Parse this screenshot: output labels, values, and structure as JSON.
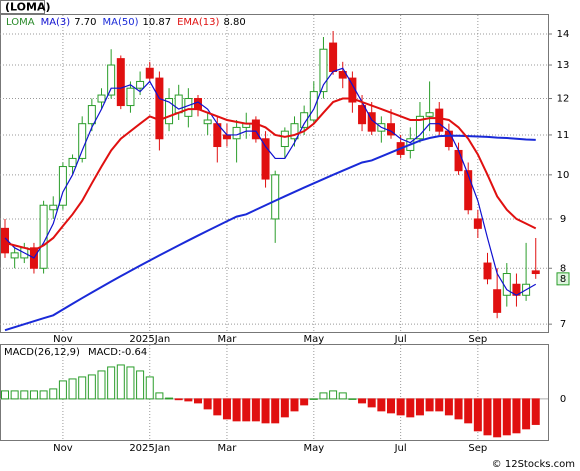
{
  "chart_data": {
    "type": "candlestick",
    "title": "(LOMA)",
    "legend_ticker": "LOMA",
    "categories": [
      null,
      null,
      null,
      null,
      null,
      null,
      "Nov",
      null,
      null,
      null,
      null,
      null,
      null,
      null,
      null,
      "2025Jan",
      null,
      null,
      null,
      null,
      null,
      null,
      null,
      "Mar",
      null,
      null,
      null,
      null,
      null,
      null,
      null,
      null,
      "May",
      null,
      null,
      null,
      null,
      null,
      null,
      null,
      null,
      "Jul",
      null,
      null,
      null,
      null,
      null,
      null,
      null,
      "Sep",
      null,
      null,
      null,
      null,
      null,
      null
    ],
    "open": [
      8.8,
      8.2,
      8.2,
      8.4,
      8.0,
      9.2,
      9.3,
      10.2,
      10.4,
      11.3,
      11.9,
      12.1,
      13.2,
      11.8,
      12.3,
      12.9,
      12.6,
      11.3,
      11.6,
      11.5,
      12.0,
      11.3,
      11.3,
      11.0,
      10.9,
      11.2,
      11.4,
      10.9,
      9.0,
      10.7,
      10.9,
      11.2,
      11.4,
      12.2,
      13.7,
      12.8,
      12.6,
      11.8,
      11.6,
      11.1,
      11.3,
      10.8,
      10.6,
      10.9,
      11.5,
      11.7,
      11.1,
      10.6,
      10.1,
      9.0,
      8.1,
      7.6,
      7.5,
      7.7,
      7.5,
      7.95
    ],
    "high": [
      9.0,
      8.4,
      8.5,
      8.5,
      9.4,
      9.5,
      10.3,
      10.5,
      11.5,
      12.0,
      12.3,
      13.5,
      13.3,
      12.5,
      12.8,
      13.1,
      12.8,
      12.3,
      12.4,
      12.3,
      12.1,
      11.6,
      11.5,
      11.3,
      11.4,
      11.6,
      11.5,
      11.1,
      10.1,
      11.2,
      11.5,
      11.8,
      12.5,
      13.9,
      14.1,
      13.1,
      12.8,
      12.1,
      11.9,
      11.5,
      11.7,
      11.0,
      11.2,
      11.9,
      12.5,
      11.9,
      11.3,
      10.8,
      10.3,
      9.2,
      8.3,
      8.0,
      8.1,
      7.9,
      8.5,
      8.6
    ],
    "low": [
      8.2,
      8.0,
      8.1,
      7.9,
      7.9,
      9.0,
      9.2,
      10.0,
      10.3,
      11.1,
      11.7,
      12.0,
      11.7,
      11.6,
      12.1,
      12.5,
      10.6,
      11.1,
      11.4,
      11.2,
      11.5,
      11.0,
      10.3,
      10.7,
      10.3,
      10.9,
      10.8,
      9.7,
      8.5,
      10.4,
      10.7,
      11.0,
      11.3,
      12.0,
      12.7,
      12.3,
      11.6,
      11.1,
      11.0,
      10.8,
      10.9,
      10.4,
      10.4,
      10.8,
      11.1,
      11.0,
      10.6,
      10.0,
      9.1,
      8.6,
      7.7,
      7.1,
      7.3,
      7.3,
      7.4,
      7.8
    ],
    "close": [
      8.3,
      8.3,
      8.4,
      8.0,
      9.3,
      9.3,
      10.2,
      10.4,
      11.3,
      11.8,
      12.1,
      13.0,
      11.8,
      12.3,
      12.5,
      12.6,
      10.9,
      12.0,
      12.1,
      12.0,
      11.7,
      11.4,
      10.7,
      10.9,
      11.2,
      11.3,
      10.9,
      9.9,
      10.0,
      11.1,
      11.3,
      11.6,
      12.2,
      13.5,
      12.8,
      12.6,
      11.9,
      11.3,
      11.1,
      11.3,
      11.0,
      10.5,
      10.9,
      11.5,
      11.6,
      11.1,
      10.7,
      10.1,
      9.2,
      8.8,
      7.8,
      7.2,
      7.9,
      7.5,
      7.7,
      7.9
    ],
    "up_color": "#2a9d2a",
    "down_color": "#e01010",
    "series": [
      {
        "name": "MA(3)",
        "value_label": "7.70",
        "color": "#1010d0",
        "values": [
          8.6,
          8.4,
          8.3,
          8.2,
          8.5,
          8.9,
          9.6,
          10.0,
          10.6,
          11.2,
          11.7,
          12.3,
          12.3,
          12.4,
          12.2,
          12.5,
          12.0,
          11.9,
          11.7,
          11.8,
          11.9,
          11.7,
          11.3,
          11.0,
          11.0,
          11.1,
          11.1,
          10.7,
          10.4,
          10.4,
          10.8,
          11.3,
          11.7,
          12.4,
          12.8,
          12.9,
          12.4,
          11.9,
          11.4,
          11.2,
          11.1,
          10.9,
          10.8,
          11.0,
          11.3,
          11.3,
          11.1,
          10.6,
          10.0,
          9.4,
          8.6,
          7.9,
          7.6,
          7.5,
          7.6,
          7.7
        ]
      },
      {
        "name": "MA(50)",
        "value_label": "10.87",
        "color": "#1a2ad8",
        "values": [
          6.9,
          6.95,
          7.0,
          7.05,
          7.1,
          7.15,
          7.25,
          7.35,
          7.45,
          7.55,
          7.65,
          7.75,
          7.85,
          7.95,
          8.05,
          8.15,
          8.25,
          8.35,
          8.45,
          8.55,
          8.65,
          8.75,
          8.85,
          8.95,
          9.05,
          9.1,
          9.2,
          9.3,
          9.4,
          9.5,
          9.6,
          9.7,
          9.8,
          9.9,
          10.0,
          10.1,
          10.2,
          10.3,
          10.35,
          10.45,
          10.55,
          10.65,
          10.75,
          10.85,
          10.92,
          10.97,
          10.98,
          10.98,
          10.97,
          10.96,
          10.95,
          10.93,
          10.92,
          10.9,
          10.88,
          10.87
        ]
      },
      {
        "name": "EMA(13)",
        "value_label": "8.80",
        "color": "#e01010",
        "values": [
          8.5,
          8.45,
          8.4,
          8.35,
          8.45,
          8.6,
          8.85,
          9.1,
          9.4,
          9.8,
          10.2,
          10.6,
          10.9,
          11.1,
          11.3,
          11.5,
          11.4,
          11.5,
          11.6,
          11.7,
          11.7,
          11.6,
          11.5,
          11.4,
          11.35,
          11.3,
          11.3,
          11.2,
          11.0,
          10.95,
          11.0,
          11.1,
          11.3,
          11.6,
          11.9,
          12.0,
          12.0,
          11.9,
          11.8,
          11.7,
          11.6,
          11.5,
          11.4,
          11.4,
          11.45,
          11.45,
          11.4,
          11.2,
          10.9,
          10.5,
          10.0,
          9.5,
          9.2,
          9.0,
          8.9,
          8.8
        ]
      }
    ],
    "log_scale": true,
    "ylim": [
      6.87,
      14.65
    ],
    "yticks": [
      7,
      8,
      9,
      10,
      11,
      12,
      13,
      14
    ],
    "grid": true,
    "last_price": {
      "value": 7.8,
      "label": "8"
    },
    "macd": {
      "title": "MACD(26,12,9)",
      "label": "MACD:-0.64",
      "values": [
        0.2,
        0.2,
        0.2,
        0.2,
        0.2,
        0.25,
        0.45,
        0.5,
        0.55,
        0.6,
        0.7,
        0.8,
        0.85,
        0.8,
        0.7,
        0.55,
        0.15,
        0.02,
        -0.02,
        -0.05,
        -0.1,
        -0.25,
        -0.4,
        -0.5,
        -0.55,
        -0.55,
        -0.55,
        -0.6,
        -0.6,
        -0.45,
        -0.3,
        -0.15,
        0.0,
        0.15,
        0.2,
        0.15,
        0.0,
        -0.1,
        -0.2,
        -0.3,
        -0.35,
        -0.4,
        -0.45,
        -0.4,
        -0.3,
        -0.3,
        -0.4,
        -0.5,
        -0.6,
        -0.8,
        -0.9,
        -0.95,
        -0.9,
        -0.85,
        -0.75,
        -0.64
      ],
      "ylim": [
        -1.03,
        1.35
      ],
      "yticks": [
        0
      ]
    },
    "footer": "© 12Stocks.com"
  }
}
